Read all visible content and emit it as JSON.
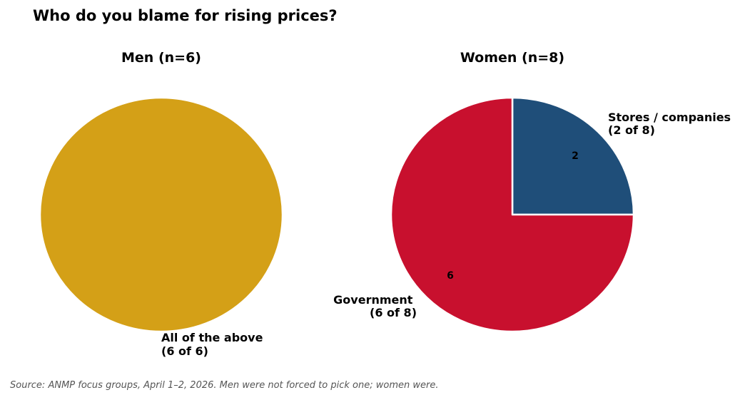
{
  "page_title": "Who do you blame for rising prices?",
  "source_note": "Source: ANMP focus groups, April 1–2, 2026. Men were not forced to pick one; women were.",
  "chart_data": [
    {
      "type": "pie",
      "title": "Men (n=6)",
      "slices": [
        {
          "label": "All of the above",
          "sublabel": "(6 of 6)",
          "value": 6,
          "value_label": "",
          "color": "#D4A017"
        }
      ]
    },
    {
      "type": "pie",
      "title": "Women (n=8)",
      "slices": [
        {
          "label": "Stores / companies",
          "sublabel": "(2 of 8)",
          "value": 2,
          "value_label": "2",
          "color": "#1F4E79"
        },
        {
          "label": "Government",
          "sublabel": "(6 of 8)",
          "value": 6,
          "value_label": "6",
          "color": "#C8102E"
        }
      ]
    }
  ]
}
